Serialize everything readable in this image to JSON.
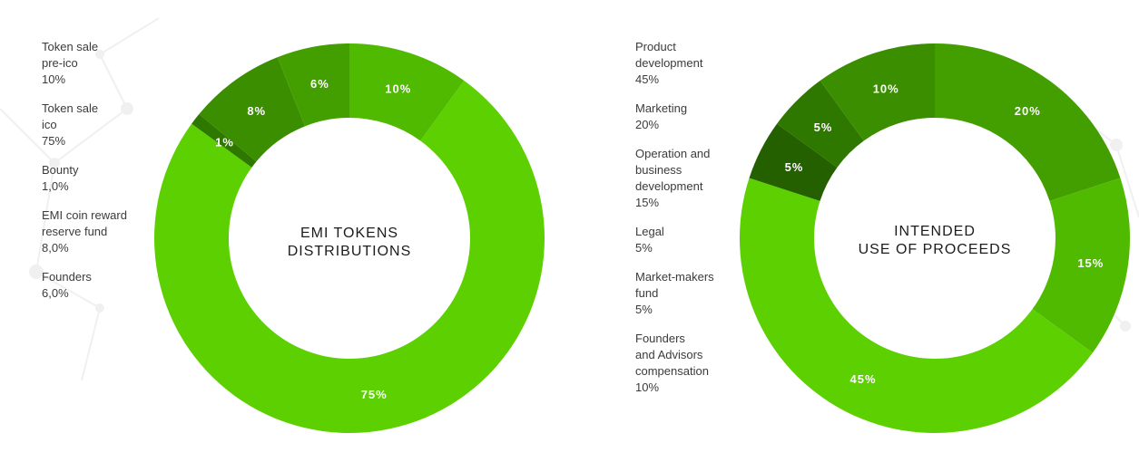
{
  "colors": {
    "shade_1": "#5cd000",
    "shade_2": "#4fba00",
    "shade_3": "#439f00",
    "shade_4": "#3a8e00",
    "shade_5": "#2f7800",
    "shade_6": "#245f00",
    "background_network": "#eeeeee"
  },
  "chart_data": [
    {
      "type": "pie",
      "variant": "donut",
      "title": "EMI  TOKENS\nDISTRIBUTIONS",
      "legend_placement": "left",
      "legend": [
        "Token sale\npre-ico\n10%",
        "Token sale\nico\n75%",
        "Bounty\n1,0%",
        "EMI coin reward\nreserve fund\n8,0%",
        "Founders\n6,0%"
      ],
      "slices": [
        {
          "value": 10,
          "label": "10%",
          "color": "#4fba00"
        },
        {
          "value": 75,
          "label": "75%",
          "color": "#5cd000"
        },
        {
          "value": 1,
          "label": "1%",
          "color": "#2f7800"
        },
        {
          "value": 8,
          "label": "8%",
          "color": "#3a8e00"
        },
        {
          "value": 6,
          "label": "6%",
          "color": "#439f00"
        }
      ]
    },
    {
      "type": "pie",
      "variant": "donut",
      "title": "INTENDED\nUSE OF PROCEEDS",
      "legend_placement": "left",
      "legend": [
        "Product\ndevelopment\n45%",
        "Marketing\n20%",
        "Operation and\nbusiness\ndevelopment\n15%",
        "Legal\n5%",
        "Market-makers\nfund\n5%",
        "Founders\nand Advisors\ncompensation\n10%"
      ],
      "slices": [
        {
          "value": 20,
          "label": "20%",
          "color": "#439f00"
        },
        {
          "value": 15,
          "label": "15%",
          "color": "#4fba00"
        },
        {
          "value": 45,
          "label": "45%",
          "color": "#5cd000"
        },
        {
          "value": 5,
          "label": "5%",
          "color": "#245f00"
        },
        {
          "value": 5,
          "label": "5%",
          "color": "#2f7800"
        },
        {
          "value": 10,
          "label": "10%",
          "color": "#3a8e00"
        }
      ]
    }
  ]
}
